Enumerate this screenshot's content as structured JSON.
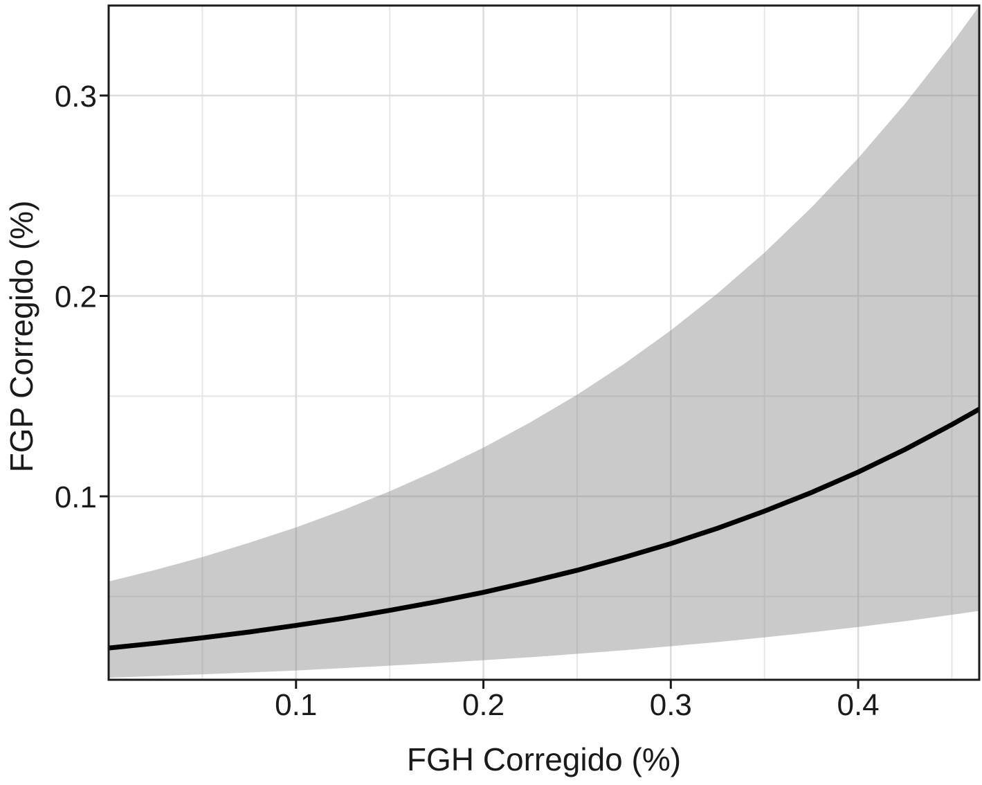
{
  "figure": {
    "kind": "line chart with confidence ribbon",
    "background": "#ffffff"
  },
  "chart_data": {
    "type": "line",
    "title": "",
    "xlabel": "FGH Corregido (%)",
    "ylabel": "FGP Corregido (%)",
    "xlim": [
      0.0,
      0.4646
    ],
    "ylim": [
      0.00846,
      0.3449
    ],
    "grid": "on",
    "legend": "none",
    "x_axis": {
      "major_ticks": [
        0.1,
        0.2,
        0.3,
        0.4
      ],
      "major_labels": [
        "0.1",
        "0.2",
        "0.3",
        "0.4"
      ],
      "minor_ticks": [
        0.05,
        0.15,
        0.25,
        0.35,
        0.45
      ]
    },
    "y_axis": {
      "major_ticks": [
        0.1,
        0.2,
        0.3
      ],
      "major_labels": [
        "0.1",
        "0.2",
        "0.3"
      ],
      "minor_ticks": [
        0.05,
        0.15,
        0.25
      ]
    },
    "x": [
      0.0,
      0.025,
      0.05,
      0.075,
      0.1,
      0.125,
      0.15,
      0.175,
      0.2,
      0.225,
      0.25,
      0.275,
      0.3,
      0.325,
      0.35,
      0.375,
      0.4,
      0.425,
      0.45,
      0.465
    ],
    "series": [
      {
        "name": "fitted line",
        "values": [
          0.0243,
          0.0267,
          0.0294,
          0.0323,
          0.0356,
          0.0391,
          0.0431,
          0.0474,
          0.0521,
          0.0574,
          0.0631,
          0.0695,
          0.0764,
          0.0841,
          0.0926,
          0.1019,
          0.1121,
          0.1234,
          0.1358,
          0.1437
        ]
      },
      {
        "name": "ribbon upper (95% CI)",
        "values": [
          0.0575,
          0.0633,
          0.0697,
          0.0768,
          0.0845,
          0.0931,
          0.1025,
          0.1129,
          0.1243,
          0.1369,
          0.1507,
          0.166,
          0.1828,
          0.2013,
          0.2216,
          0.2441,
          0.2687,
          0.2959,
          0.3258,
          0.3452
        ]
      },
      {
        "name": "ribbon lower (95% CI)",
        "values": [
          0.0095,
          0.0103,
          0.0112,
          0.0121,
          0.0131,
          0.0143,
          0.0155,
          0.0168,
          0.0182,
          0.0197,
          0.0214,
          0.0232,
          0.0252,
          0.0273,
          0.0296,
          0.0321,
          0.0348,
          0.0377,
          0.0409,
          0.0429
        ]
      }
    ],
    "colors": {
      "line": "#000000",
      "ribbon": "rgba(137,137,137,0.45)",
      "grid_major": "#dcdcdc",
      "grid_minor": "#e6e6e6",
      "panel_border": "#1a1a1a",
      "tick": "#1a1a1a",
      "text": "#1a1a1a"
    }
  }
}
